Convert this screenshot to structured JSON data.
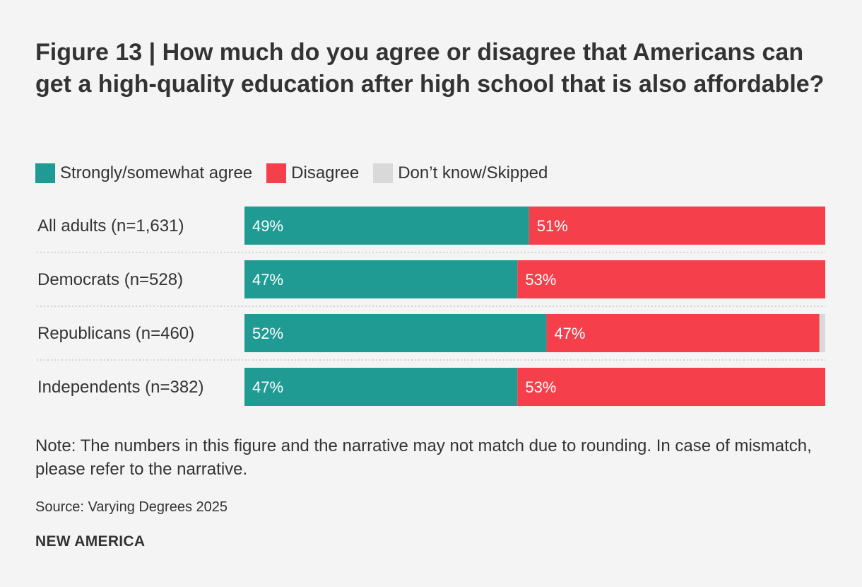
{
  "chart_data": {
    "type": "bar",
    "orientation": "horizontal",
    "stacked": true,
    "title": "Figure 13 | How much do you agree or disagree that Americans can get a high-quality education after high school that is also affordable?",
    "categories": [
      "All adults (n=1,631)",
      "Democrats (n=528)",
      "Republicans (n=460)",
      "Independents (n=382)"
    ],
    "series": [
      {
        "name": "Strongly/somewhat agree",
        "color": "#209b93",
        "values": [
          49,
          47,
          52,
          47
        ],
        "labels": [
          "49%",
          "47%",
          "52%",
          "47%"
        ]
      },
      {
        "name": "Disagree",
        "color": "#f5404b",
        "values": [
          51,
          53,
          47,
          53
        ],
        "labels": [
          "51%",
          "53%",
          "47%",
          "53%"
        ]
      },
      {
        "name": "Don’t know/Skipped",
        "color": "#d9d9d9",
        "values": [
          0,
          0,
          1,
          0
        ],
        "labels": [
          "",
          "",
          "",
          ""
        ]
      }
    ],
    "xlim": [
      0,
      100
    ],
    "xlabel": "",
    "ylabel": "",
    "legend": "top-left",
    "note": "Note: The numbers in this figure and the narrative may not match due to rounding. In case of mismatch, please refer to the narrative.",
    "source": "Source: Varying Degrees 2025"
  },
  "brand": "NEW AMERICA"
}
